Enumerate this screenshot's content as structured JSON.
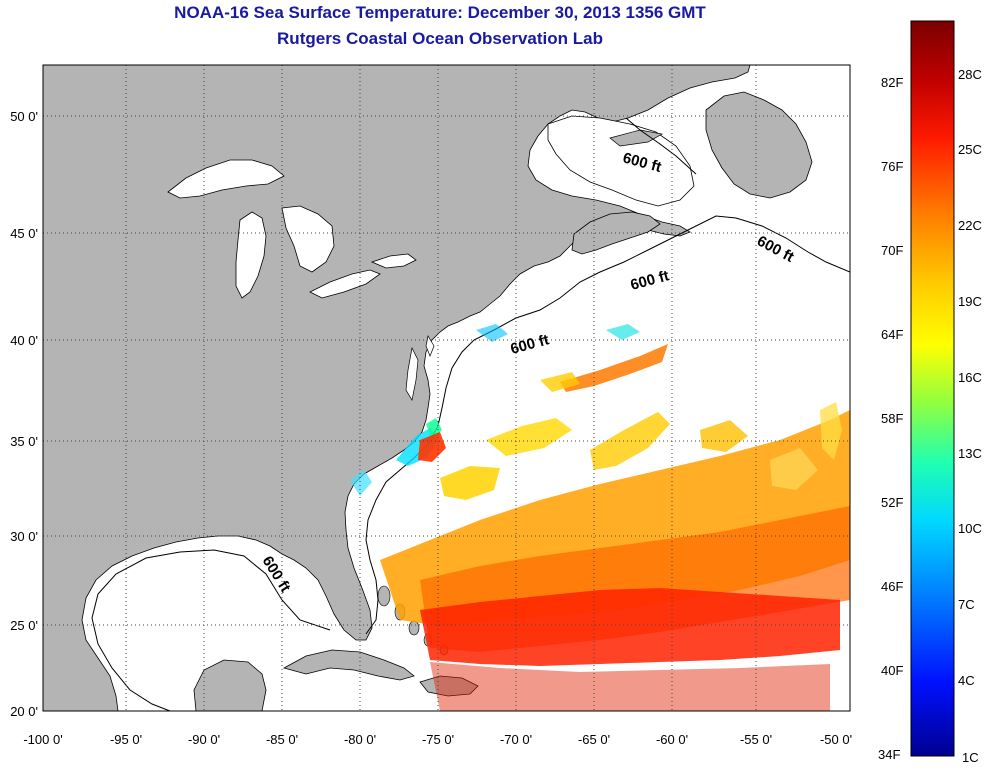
{
  "header": {
    "title": "NOAA-16 Sea Surface Temperature:  December 30, 2013 1356 GMT",
    "subtitle": "Rutgers Coastal Ocean Observation Lab"
  },
  "map": {
    "lon_labels": [
      "-100 0'",
      "-95 0'",
      "-90 0'",
      "-85 0'",
      "-80 0'",
      "-75 0'",
      "-70 0'",
      "-65 0'",
      "-60 0'",
      "-55 0'",
      "-50 0'"
    ],
    "lat_labels": [
      "50 0'",
      "45 0'",
      "40 0'",
      "35 0'",
      "30 0'",
      "25 0'",
      "20 0'"
    ],
    "depth_labels": [
      "600 ft",
      "600 ft",
      "600 ft",
      "600 ft",
      "600 ft"
    ],
    "colors": {
      "land": "#b4b4b4",
      "ocean": "#ffffff",
      "grid": "#444444"
    }
  },
  "colorbar": {
    "fahrenheit": [
      "82F",
      "76F",
      "70F",
      "64F",
      "58F",
      "52F",
      "46F",
      "40F",
      "34F"
    ],
    "celsius": [
      "28C",
      "25C",
      "22C",
      "19C",
      "16C",
      "13C",
      "10C",
      "7C",
      "4C",
      "1C"
    ]
  }
}
